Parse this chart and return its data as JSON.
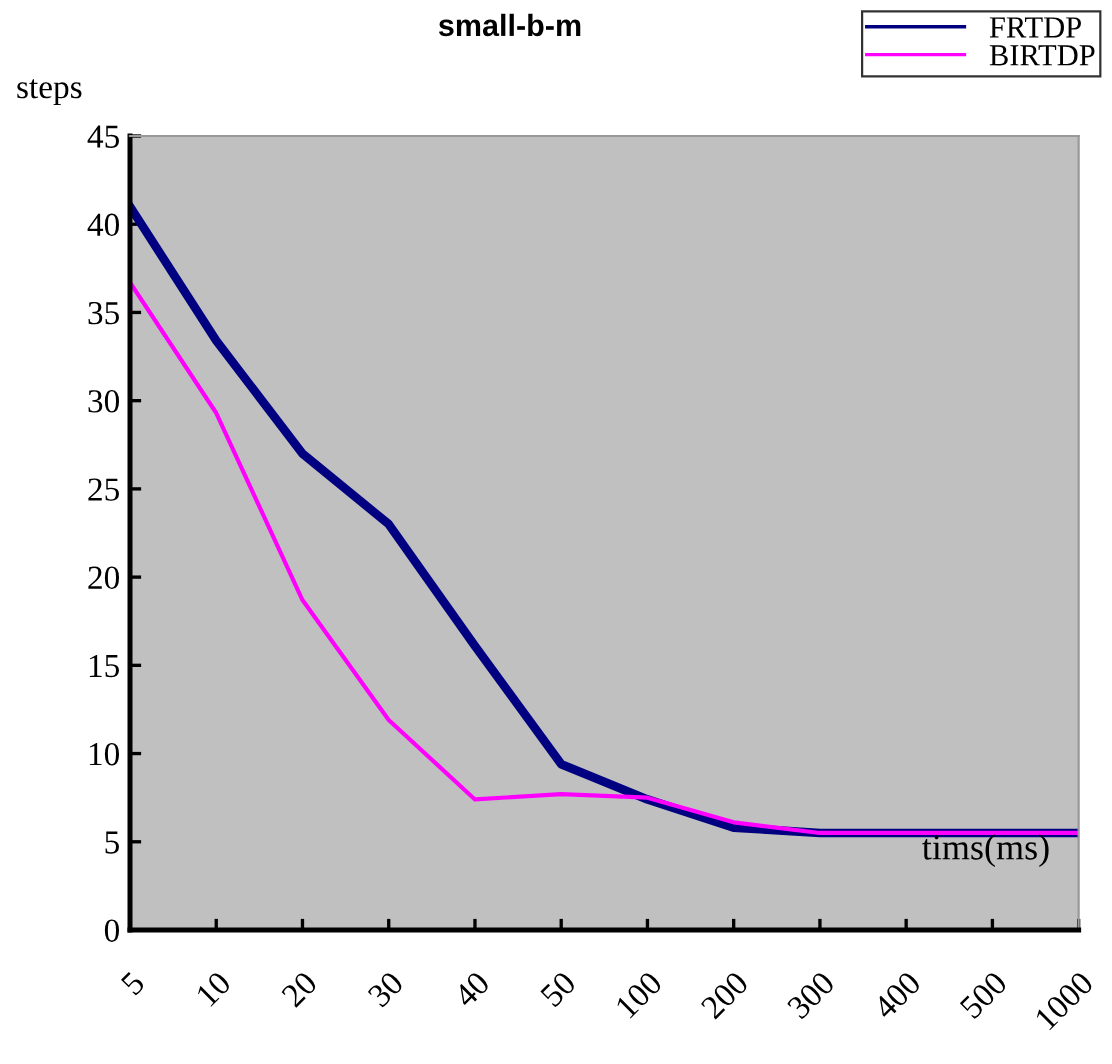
{
  "chart_data": {
    "type": "line",
    "title": "small-b-m",
    "ylabel": "steps",
    "categories": [
      "5",
      "10",
      "20",
      "30",
      "40",
      "50",
      "100",
      "200",
      "300",
      "400",
      "500",
      "1000"
    ],
    "series": [
      {
        "name": "FRTDP",
        "color": "#000080",
        "values": [
          41.0,
          33.4,
          27.0,
          23.0,
          16.1,
          9.4,
          7.4,
          5.8,
          5.5,
          5.5,
          5.5,
          5.5
        ]
      },
      {
        "name": "BIRTDP",
        "color": "#ff00ff",
        "values": [
          36.7,
          29.3,
          18.7,
          11.9,
          7.4,
          7.7,
          7.5,
          6.1,
          5.5,
          5.5,
          5.5,
          5.5
        ]
      }
    ],
    "ylim": [
      0,
      45
    ],
    "yticks": [
      0,
      5,
      10,
      15,
      20,
      25,
      30,
      35,
      40,
      45
    ],
    "annotations": [
      "tims(ms)"
    ],
    "grid": false,
    "legend": "top right",
    "marker": "none",
    "line_style": "solid"
  }
}
